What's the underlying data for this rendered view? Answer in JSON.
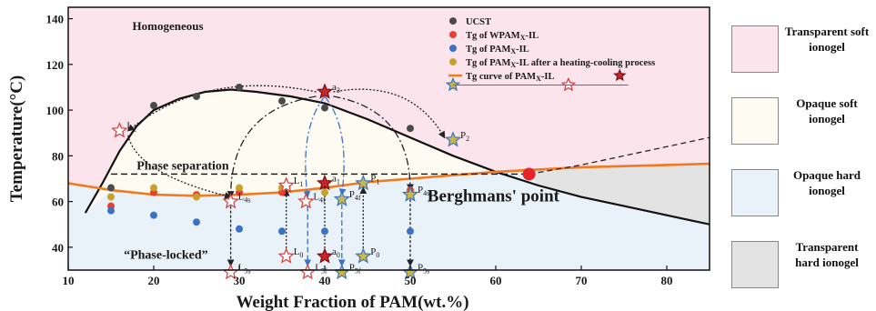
{
  "chart_data": {
    "type": "scatter",
    "xlabel": "Weight Fraction of PAM(wt.%)",
    "ylabel": "Temperature(°C)",
    "xlim": [
      10,
      85
    ],
    "ylim": [
      30,
      145
    ],
    "x_ticks": [
      10,
      20,
      30,
      40,
      50,
      60,
      70,
      80
    ],
    "y_ticks": [
      40,
      60,
      80,
      100,
      120,
      140
    ],
    "colors": {
      "ucst": "#4a4a4a",
      "tg_wpam": "#e8402c",
      "tg_pam": "#3c72c4",
      "tg_after": "#c8a227",
      "tg_curve": "#f07a1e",
      "region_homogeneous": "#fbe4ec",
      "region_phase_sep": "#fdfbf2",
      "region_hard": "#e9f2f8",
      "region_transparent_hard": "#e3e3e3",
      "star_red": "#c8262c",
      "star_hollow": "#d83a3a"
    },
    "legend": [
      {
        "key": "ucst",
        "label": "UCST"
      },
      {
        "key": "tg_wpam",
        "label": "Tg of WPAM"
      },
      {
        "key": "tg_pam",
        "label": "Tg of PAM"
      },
      {
        "key": "tg_after",
        "label": "Tg of PAM"
      },
      {
        "key": "tg_curve",
        "label": "Tg curve of PAM"
      }
    ],
    "legend_subscript": "X",
    "legend_suffix": "-IL",
    "legend_after_suffix": "-IL after a heating-cooling process",
    "series": [
      {
        "name": "UCST",
        "key": "ucst",
        "points": [
          [
            15,
            66
          ],
          [
            20,
            102
          ],
          [
            25,
            106
          ],
          [
            30,
            110
          ],
          [
            35,
            104
          ],
          [
            40,
            101
          ],
          [
            50,
            92
          ]
        ]
      },
      {
        "name": "Tg of WPAM",
        "key": "tg_wpam",
        "points": [
          [
            15,
            58
          ],
          [
            20,
            64
          ],
          [
            25,
            63
          ],
          [
            30,
            64
          ],
          [
            35,
            64
          ],
          [
            40,
            68
          ],
          [
            50,
            65
          ]
        ]
      },
      {
        "name": "Tg of PAM",
        "key": "tg_pam",
        "points": [
          [
            15,
            56
          ],
          [
            20,
            54
          ],
          [
            25,
            51
          ],
          [
            30,
            48
          ],
          [
            35,
            47
          ],
          [
            40,
            47
          ],
          [
            50,
            47
          ]
        ]
      },
      {
        "name": "Tg of PAM after a heating-cooling process",
        "key": "tg_after",
        "points": [
          [
            15,
            62
          ],
          [
            20,
            66
          ],
          [
            25,
            62
          ],
          [
            30,
            66
          ],
          [
            35,
            66
          ],
          [
            40,
            64
          ],
          [
            50,
            63
          ]
        ]
      }
    ],
    "tg_curve_points": [
      [
        10,
        68
      ],
      [
        15,
        65
      ],
      [
        20,
        63
      ],
      [
        25,
        62.5
      ],
      [
        30,
        63
      ],
      [
        35,
        64
      ],
      [
        40,
        66
      ],
      [
        45,
        68.5
      ],
      [
        50,
        70
      ],
      [
        55,
        71.5
      ],
      [
        60,
        73
      ],
      [
        65,
        74
      ],
      [
        70,
        75
      ],
      [
        75,
        75.5
      ],
      [
        80,
        76
      ],
      [
        85,
        76.5
      ]
    ],
    "ucst_curve_points": [
      [
        12,
        55
      ],
      [
        14,
        68
      ],
      [
        16,
        82
      ],
      [
        18,
        93
      ],
      [
        20,
        100
      ],
      [
        23,
        105
      ],
      [
        26,
        108
      ],
      [
        29,
        109
      ],
      [
        32,
        108
      ],
      [
        36,
        106
      ],
      [
        40,
        103
      ],
      [
        45,
        96
      ],
      [
        50,
        88
      ],
      [
        55,
        80
      ],
      [
        60,
        73
      ],
      [
        65,
        67
      ],
      [
        70,
        62
      ],
      [
        75,
        58
      ],
      [
        80,
        54
      ],
      [
        85,
        50
      ]
    ],
    "binodal_dashed_points": [
      [
        63.9,
        72
      ],
      [
        70,
        76
      ],
      [
        75,
        80
      ],
      [
        80,
        84
      ],
      [
        85,
        88
      ]
    ],
    "berghmans_point": {
      "x": 63.9,
      "y": 72,
      "label": "Berghmans' point"
    },
    "region_labels": {
      "homogeneous": "Homogeneous",
      "phase_separation": "Phase separation",
      "phase_locked": "“Phase-locked”"
    },
    "annotations": [
      {
        "text": "L",
        "sub": "2",
        "x": 16,
        "y": 91,
        "star": "hollow"
      },
      {
        "text": "L",
        "sub": "4s",
        "x": 29,
        "y": 60,
        "star": "hollow"
      },
      {
        "text": "L",
        "sub": "5s",
        "x": 29,
        "y": 29,
        "star": "hollow"
      },
      {
        "text": "L",
        "sub": "1",
        "x": 35.5,
        "y": 67,
        "star": "hollow"
      },
      {
        "text": "L",
        "sub": "0",
        "x": 35.5,
        "y": 36,
        "star": "hollow"
      },
      {
        "text": "L",
        "sub": "4f",
        "x": 37.8,
        "y": 60,
        "star": "hollow"
      },
      {
        "text": "L",
        "sub": "5f",
        "x": 38,
        "y": 29,
        "star": "hollow"
      },
      {
        "text": "a",
        "sub": "3",
        "x": 40,
        "y": 108,
        "star": "red"
      },
      {
        "text": "a",
        "sub": "1",
        "x": 40,
        "y": 68,
        "star": "red"
      },
      {
        "text": "a",
        "sub": "0",
        "x": 40,
        "y": 36,
        "star": "red"
      },
      {
        "text": "P",
        "sub": "4f",
        "x": 42,
        "y": 61,
        "star": "olive"
      },
      {
        "text": "P",
        "sub": "5f",
        "x": 42,
        "y": 29,
        "star": "olive"
      },
      {
        "text": "P",
        "sub": "1",
        "x": 44.5,
        "y": 68,
        "star": "olive"
      },
      {
        "text": "P",
        "sub": "0",
        "x": 44.5,
        "y": 36,
        "star": "olive"
      },
      {
        "text": "P",
        "sub": "4s",
        "x": 50,
        "y": 63,
        "star": "olive"
      },
      {
        "text": "P",
        "sub": "5s",
        "x": 50,
        "y": 29,
        "star": "olive"
      },
      {
        "text": "P",
        "sub": "2",
        "x": 55,
        "y": 87,
        "star": "olive"
      }
    ],
    "right_legend": [
      {
        "text": "Transparent soft ionogel",
        "color": "#fbe4ec"
      },
      {
        "text": "Opaque soft ionogel",
        "color": "#fdfbf2"
      },
      {
        "text": "Opaque hard ionogel",
        "color": "#e9f2f8"
      },
      {
        "text": "Transparent hard ionogel",
        "color": "#e3e3e3"
      }
    ],
    "grid": false,
    "legend_position": "top-right"
  }
}
